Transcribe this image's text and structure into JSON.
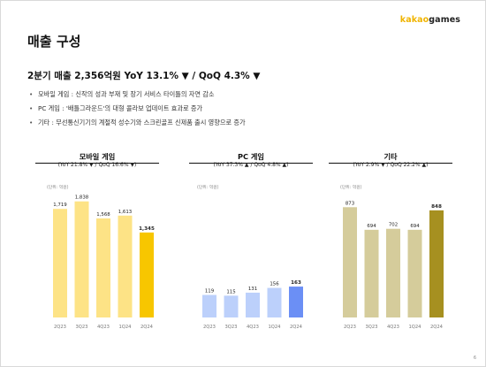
{
  "logo": {
    "part1": "kakao",
    "part2": "games"
  },
  "page_title": "매출 구성",
  "headline": "2분기 매출 2,356억원 YoY 13.1% ▼ / QoQ 4.3% ▼",
  "bullets": [
    "모바일 게임 : 신작의 성과 부재 및 장기 서비스 타이틀의 자연 감소",
    "PC 게임 : '배틀그라운드'의 대형 콜라보 업데이트 효과로 증가",
    "기타 : 무선통신기기의 계절적 성수기와 스크린골프 신제품 출시 영향으로 증가"
  ],
  "page_number": "6",
  "colors": {
    "mobile_bar": "#fde386",
    "mobile_highlight": "#f7c600",
    "pc_bar": "#bcd0fb",
    "pc_highlight": "#6b8ff5",
    "other_bar": "#d5cc9b",
    "other_highlight": "#a69020"
  },
  "chart_data": [
    {
      "type": "bar",
      "title": "모바일 게임",
      "subtitle": "(YoY 21.8% ▼ / QoQ 16.6% ▼)",
      "unit_label": "(단위: 억원)",
      "categories": [
        "2Q23",
        "3Q23",
        "4Q23",
        "1Q24",
        "2Q24"
      ],
      "values": [
        1719,
        1838,
        1568,
        1613,
        1345
      ],
      "value_labels": [
        "1,719",
        "1,838",
        "1,568",
        "1,613",
        "1,345"
      ],
      "highlight_index": 4,
      "ylim": [
        0,
        2100
      ]
    },
    {
      "type": "bar",
      "title": "PC 게임",
      "subtitle": "(YoY 37.3% ▲ / QoQ 4.8% ▲)",
      "unit_label": "(단위: 억원)",
      "categories": [
        "2Q23",
        "3Q23",
        "4Q23",
        "1Q24",
        "2Q24"
      ],
      "values": [
        119,
        115,
        131,
        156,
        163
      ],
      "value_labels": [
        "119",
        "115",
        "131",
        "156",
        "163"
      ],
      "highlight_index": 4,
      "ylim": [
        0,
        700
      ]
    },
    {
      "type": "bar",
      "title": "기타",
      "subtitle": "(YoY 2.9% ▼ / QoQ 22.2% ▲)",
      "unit_label": "(단위: 억원)",
      "categories": [
        "2Q23",
        "3Q23",
        "4Q23",
        "1Q24",
        "2Q24"
      ],
      "values": [
        873,
        694,
        702,
        694,
        848
      ],
      "value_labels": [
        "873",
        "694",
        "702",
        "694",
        "848"
      ],
      "highlight_index": 4,
      "ylim": [
        0,
        1050
      ]
    }
  ]
}
